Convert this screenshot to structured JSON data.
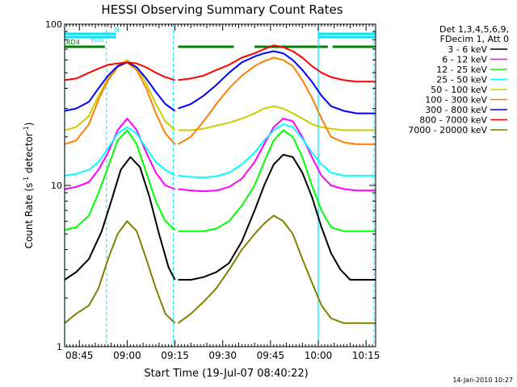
{
  "chart_data": {
    "type": "line",
    "title": "HESSI Observing Summary Count Rates",
    "xlabel": "Start Time (19-Jul-07 08:40:22)",
    "ylabel_parts": {
      "main": "Count Rate (s",
      "exp": "-1",
      "tail": " detector",
      "close": ")"
    },
    "yscale": "log",
    "ylim": [
      1,
      100
    ],
    "xlim": [
      "08:40:22",
      "10:18:00"
    ],
    "grid": false,
    "ytick_labels": [
      {
        "value": 1,
        "label": "1"
      },
      {
        "value": 10,
        "label": "10"
      },
      {
        "value": 100,
        "label": "100"
      }
    ],
    "xtick_labels": [
      {
        "time": "08:45",
        "label": "08:45"
      },
      {
        "time": "09:00",
        "label": "09:00"
      },
      {
        "time": "09:15",
        "label": "09:15"
      },
      {
        "time": "09:30",
        "label": "09:30"
      },
      {
        "time": "09:45",
        "label": "09:45"
      },
      {
        "time": "10:00",
        "label": "10:00"
      },
      {
        "time": "10:15",
        "label": "10:15"
      }
    ],
    "legend": {
      "placement": "top-right",
      "header": [
        "Det 1,3,4,5,6,9,",
        "FDecim 1, Att 0"
      ],
      "entries": [
        {
          "label": "3 - 6 keV",
          "color": "#000000"
        },
        {
          "label": "6 - 12 keV",
          "color": "#ff00ff"
        },
        {
          "label": "12 - 25 keV",
          "color": "#00ff00"
        },
        {
          "label": "25 - 50 keV",
          "color": "#00ffff"
        },
        {
          "label": "50 - 100 keV",
          "color": "#cccc00"
        },
        {
          "label": "100 - 300 keV",
          "color": "#ff8000"
        },
        {
          "label": "300 - 800 keV",
          "color": "#0000ff"
        },
        {
          "label": "800 - 7000 keV",
          "color": "#ff0000"
        },
        {
          "label": "7000 - 20000 keV",
          "color": "#808000"
        }
      ]
    },
    "status_bars": [
      {
        "label": "N",
        "color": "#00e5ff",
        "segments": [
          [
            "08:40:22",
            "08:56:30"
          ],
          [
            "10:00:00",
            "10:18:00"
          ]
        ],
        "label_time": "08:56:30"
      },
      {
        "label": "RD0",
        "color": "#00e5ff",
        "segments": [
          [
            "08:40:22",
            "08:56:30"
          ],
          [
            "10:00:00",
            "10:18:00"
          ]
        ],
        "label_time": "08:48:00"
      },
      {
        "label": "RD4",
        "color": "#008000",
        "segments": [
          [
            "08:40:22",
            "08:53:00"
          ],
          [
            "09:16:00",
            "09:33:30"
          ],
          [
            "09:40:00",
            "10:03:00"
          ],
          [
            "10:04:30",
            "10:18:00"
          ]
        ],
        "label_time": "08:40:22"
      }
    ],
    "night_markers": {
      "color": "#00e5ff",
      "solid": [
        "08:40:22",
        "10:00:00"
      ],
      "dashed": [
        "08:53:30",
        "09:14:30",
        "10:17:30"
      ]
    },
    "series": [
      {
        "name": "3 - 6 keV",
        "color": "#000000",
        "segments": [
          {
            "x": [
              "08:40:22",
              "08:44:00",
              "08:48:00",
              "08:52:00",
              "08:55:00",
              "08:58:00",
              "09:01:00",
              "09:04:00",
              "09:07:00",
              "09:10:00",
              "09:13:00",
              "09:15:00"
            ],
            "y": [
              2.6,
              2.9,
              3.5,
              5.2,
              8.0,
              12.5,
              15.0,
              13.0,
              8.5,
              5.0,
              3.1,
              2.6
            ]
          },
          {
            "x": [
              "09:16:00",
              "09:20:00",
              "09:24:00",
              "09:28:00",
              "09:32:00",
              "09:36:00",
              "09:40:00",
              "09:43:00",
              "09:46:00",
              "09:49:00",
              "09:52:00",
              "09:55:00",
              "09:58:00",
              "10:01:00",
              "10:04:00",
              "10:07:00",
              "10:10:00",
              "10:14:00",
              "10:18:00"
            ],
            "y": [
              2.6,
              2.6,
              2.7,
              2.9,
              3.3,
              4.5,
              7.0,
              10.0,
              13.5,
              15.5,
              15.0,
              12.0,
              8.5,
              5.5,
              3.8,
              3.0,
              2.6,
              2.6,
              2.6
            ]
          }
        ]
      },
      {
        "name": "6 - 12 keV",
        "color": "#ff00ff",
        "segments": [
          {
            "x": [
              "08:40:22",
              "08:44:00",
              "08:48:00",
              "08:51:00",
              "08:54:00",
              "08:57:00",
              "09:00:00",
              "09:03:00",
              "09:06:00",
              "09:09:00",
              "09:12:00",
              "09:15:00"
            ],
            "y": [
              9.5,
              9.8,
              10.5,
              12.5,
              16.0,
              22.0,
              26.0,
              22.0,
              16.0,
              12.0,
              10.0,
              9.5
            ]
          },
          {
            "x": [
              "09:16:00",
              "09:20:00",
              "09:24:00",
              "09:28:00",
              "09:32:00",
              "09:36:00",
              "09:40:00",
              "09:43:00",
              "09:46:00",
              "09:49:00",
              "09:52:00",
              "09:55:00",
              "09:58:00",
              "10:01:00",
              "10:04:00",
              "10:08:00",
              "10:12:00",
              "10:18:00"
            ],
            "y": [
              9.5,
              9.3,
              9.2,
              9.3,
              9.8,
              11.0,
              14.0,
              18.0,
              23.0,
              26.0,
              25.0,
              20.0,
              15.0,
              11.5,
              10.0,
              9.5,
              9.3,
              9.3
            ]
          }
        ]
      },
      {
        "name": "12 - 25 keV",
        "color": "#00ff00",
        "segments": [
          {
            "x": [
              "08:40:22",
              "08:44:00",
              "08:48:00",
              "08:51:00",
              "08:54:00",
              "08:57:00",
              "09:00:00",
              "09:03:00",
              "09:06:00",
              "09:09:00",
              "09:12:00",
              "09:15:00"
            ],
            "y": [
              5.3,
              5.5,
              6.5,
              9.0,
              13.0,
              19.0,
              22.0,
              18.0,
              12.0,
              8.0,
              6.0,
              5.3
            ]
          },
          {
            "x": [
              "09:16:00",
              "09:20:00",
              "09:24:00",
              "09:28:00",
              "09:32:00",
              "09:36:00",
              "09:40:00",
              "09:43:00",
              "09:46:00",
              "09:49:00",
              "09:52:00",
              "09:55:00",
              "09:58:00",
              "10:01:00",
              "10:04:00",
              "10:08:00",
              "10:12:00",
              "10:18:00"
            ],
            "y": [
              5.2,
              5.2,
              5.2,
              5.4,
              6.0,
              7.5,
              10.0,
              14.0,
              19.0,
              22.0,
              20.0,
              15.0,
              10.0,
              7.0,
              5.5,
              5.2,
              5.2,
              5.2
            ]
          }
        ]
      },
      {
        "name": "25 - 50 keV",
        "color": "#00ffff",
        "segments": [
          {
            "x": [
              "08:40:22",
              "08:44:00",
              "08:48:00",
              "08:51:00",
              "08:54:00",
              "08:57:00",
              "09:00:00",
              "09:03:00",
              "09:06:00",
              "09:09:00",
              "09:12:00",
              "09:15:00"
            ],
            "y": [
              11.5,
              11.8,
              12.5,
              14.0,
              17.0,
              21.0,
              23.0,
              21.0,
              17.0,
              14.0,
              12.5,
              11.5
            ]
          },
          {
            "x": [
              "09:16:00",
              "09:20:00",
              "09:24:00",
              "09:28:00",
              "09:32:00",
              "09:36:00",
              "09:40:00",
              "09:43:00",
              "09:46:00",
              "09:49:00",
              "09:52:00",
              "09:55:00",
              "09:58:00",
              "10:01:00",
              "10:04:00",
              "10:08:00",
              "10:12:00",
              "10:18:00"
            ],
            "y": [
              11.5,
              11.3,
              11.2,
              11.4,
              12.0,
              13.5,
              16.0,
              19.0,
              22.0,
              24.0,
              23.0,
              19.5,
              16.0,
              13.5,
              12.0,
              11.5,
              11.5,
              11.5
            ]
          }
        ]
      },
      {
        "name": "50 - 100 keV",
        "color": "#cccc00",
        "segments": [
          {
            "x": [
              "08:40:22",
              "08:44:00",
              "08:48:00",
              "08:51:00",
              "08:54:00",
              "08:57:00",
              "09:00:00",
              "09:03:00",
              "09:06:00",
              "09:09:00",
              "09:12:00",
              "09:15:00"
            ],
            "y": [
              22.0,
              23.0,
              27.0,
              36.0,
              46.0,
              55.0,
              60.0,
              54.0,
              43.0,
              32.0,
              25.0,
              22.0
            ]
          },
          {
            "x": [
              "09:16:00",
              "09:20:00",
              "09:24:00",
              "09:28:00",
              "09:32:00",
              "09:36:00",
              "09:40:00",
              "09:43:00",
              "09:46:00",
              "09:49:00",
              "09:52:00",
              "09:55:00",
              "09:58:00",
              "10:01:00",
              "10:04:00",
              "10:08:00",
              "10:12:00",
              "10:18:00"
            ],
            "y": [
              22.0,
              22.0,
              22.5,
              23.5,
              24.5,
              26.0,
              28.0,
              30.0,
              31.0,
              30.0,
              28.0,
              26.0,
              24.0,
              23.0,
              22.5,
              22.0,
              22.0,
              22.0
            ]
          }
        ]
      },
      {
        "name": "100 - 300 keV",
        "color": "#ff8000",
        "segments": [
          {
            "x": [
              "08:40:22",
              "08:44:00",
              "08:48:00",
              "08:51:00",
              "08:54:00",
              "08:57:00",
              "09:00:00",
              "09:03:00",
              "09:06:00",
              "09:09:00",
              "09:12:00",
              "09:15:00"
            ],
            "y": [
              18.0,
              19.0,
              24.0,
              34.0,
              45.0,
              54.0,
              58.0,
              52.0,
              40.0,
              28.0,
              21.0,
              18.0
            ]
          },
          {
            "x": [
              "09:16:00",
              "09:20:00",
              "09:24:00",
              "09:28:00",
              "09:32:00",
              "09:36:00",
              "09:40:00",
              "09:43:00",
              "09:46:00",
              "09:49:00",
              "09:52:00",
              "09:55:00",
              "09:58:00",
              "10:01:00",
              "10:04:00",
              "10:08:00",
              "10:12:00",
              "10:18:00"
            ],
            "y": [
              18.0,
              20.0,
              25.0,
              32.0,
              40.0,
              48.0,
              55.0,
              59.0,
              62.0,
              60.0,
              55.0,
              45.0,
              35.0,
              26.0,
              20.0,
              18.5,
              18.0,
              18.0
            ]
          }
        ]
      },
      {
        "name": "300 - 800 keV",
        "color": "#0000ff",
        "segments": [
          {
            "x": [
              "08:40:22",
              "08:44:00",
              "08:48:00",
              "08:51:00",
              "08:54:00",
              "08:57:00",
              "09:00:00",
              "09:03:00",
              "09:06:00",
              "09:09:00",
              "09:12:00",
              "09:15:00"
            ],
            "y": [
              29.0,
              30.0,
              33.0,
              40.0,
              48.0,
              55.0,
              58.0,
              54.0,
              46.0,
              38.0,
              32.0,
              29.0
            ]
          },
          {
            "x": [
              "09:16:00",
              "09:20:00",
              "09:24:00",
              "09:28:00",
              "09:32:00",
              "09:36:00",
              "09:40:00",
              "09:43:00",
              "09:46:00",
              "09:49:00",
              "09:52:00",
              "09:55:00",
              "09:58:00",
              "10:01:00",
              "10:04:00",
              "10:08:00",
              "10:12:00",
              "10:18:00"
            ],
            "y": [
              30.0,
              32.0,
              36.0,
              42.0,
              50.0,
              58.0,
              63.0,
              66.0,
              68.0,
              66.0,
              60.0,
              52.0,
              44.0,
              36.0,
              31.0,
              29.0,
              28.0,
              28.0
            ]
          }
        ]
      },
      {
        "name": "800 - 7000 keV",
        "color": "#ff0000",
        "segments": [
          {
            "x": [
              "08:40:22",
              "08:44:00",
              "08:48:00",
              "08:51:00",
              "08:54:00",
              "08:57:00",
              "09:00:00",
              "09:03:00",
              "09:06:00",
              "09:09:00",
              "09:12:00",
              "09:15:00"
            ],
            "y": [
              45.0,
              46.0,
              50.0,
              53.0,
              56.0,
              57.0,
              58.0,
              57.0,
              54.0,
              50.0,
              47.0,
              45.0
            ]
          },
          {
            "x": [
              "09:16:00",
              "09:20:00",
              "09:24:00",
              "09:28:00",
              "09:32:00",
              "09:36:00",
              "09:40:00",
              "09:43:00",
              "09:46:00",
              "09:49:00",
              "09:52:00",
              "09:55:00",
              "09:58:00",
              "10:01:00",
              "10:04:00",
              "10:08:00",
              "10:12:00",
              "10:18:00"
            ],
            "y": [
              45.0,
              46.0,
              48.0,
              52.0,
              56.0,
              62.0,
              66.0,
              70.0,
              74.0,
              72.0,
              68.0,
              62.0,
              55.0,
              50.0,
              47.0,
              45.0,
              44.0,
              44.0
            ]
          }
        ]
      },
      {
        "name": "7000 - 20000 keV",
        "color": "#808000",
        "segments": [
          {
            "x": [
              "08:40:22",
              "08:44:00",
              "08:48:00",
              "08:51:00",
              "08:54:00",
              "08:57:00",
              "09:00:00",
              "09:03:00",
              "09:06:00",
              "09:09:00",
              "09:12:00",
              "09:15:00"
            ],
            "y": [
              1.4,
              1.6,
              1.8,
              2.3,
              3.5,
              5.0,
              6.0,
              5.2,
              3.5,
              2.3,
              1.6,
              1.4
            ]
          },
          {
            "x": [
              "09:16:00",
              "09:20:00",
              "09:24:00",
              "09:28:00",
              "09:32:00",
              "09:36:00",
              "09:40:00",
              "09:43:00",
              "09:46:00",
              "09:49:00",
              "09:52:00",
              "09:55:00",
              "09:58:00",
              "10:01:00",
              "10:04:00",
              "10:08:00",
              "10:12:00",
              "10:18:00"
            ],
            "y": [
              1.4,
              1.6,
              1.9,
              2.3,
              3.0,
              4.0,
              5.0,
              5.8,
              6.5,
              6.0,
              5.0,
              3.5,
              2.5,
              1.8,
              1.5,
              1.4,
              1.4,
              1.4
            ]
          }
        ]
      }
    ]
  },
  "footer": {
    "date_stamp": "14-Jan-2010 10:27"
  }
}
